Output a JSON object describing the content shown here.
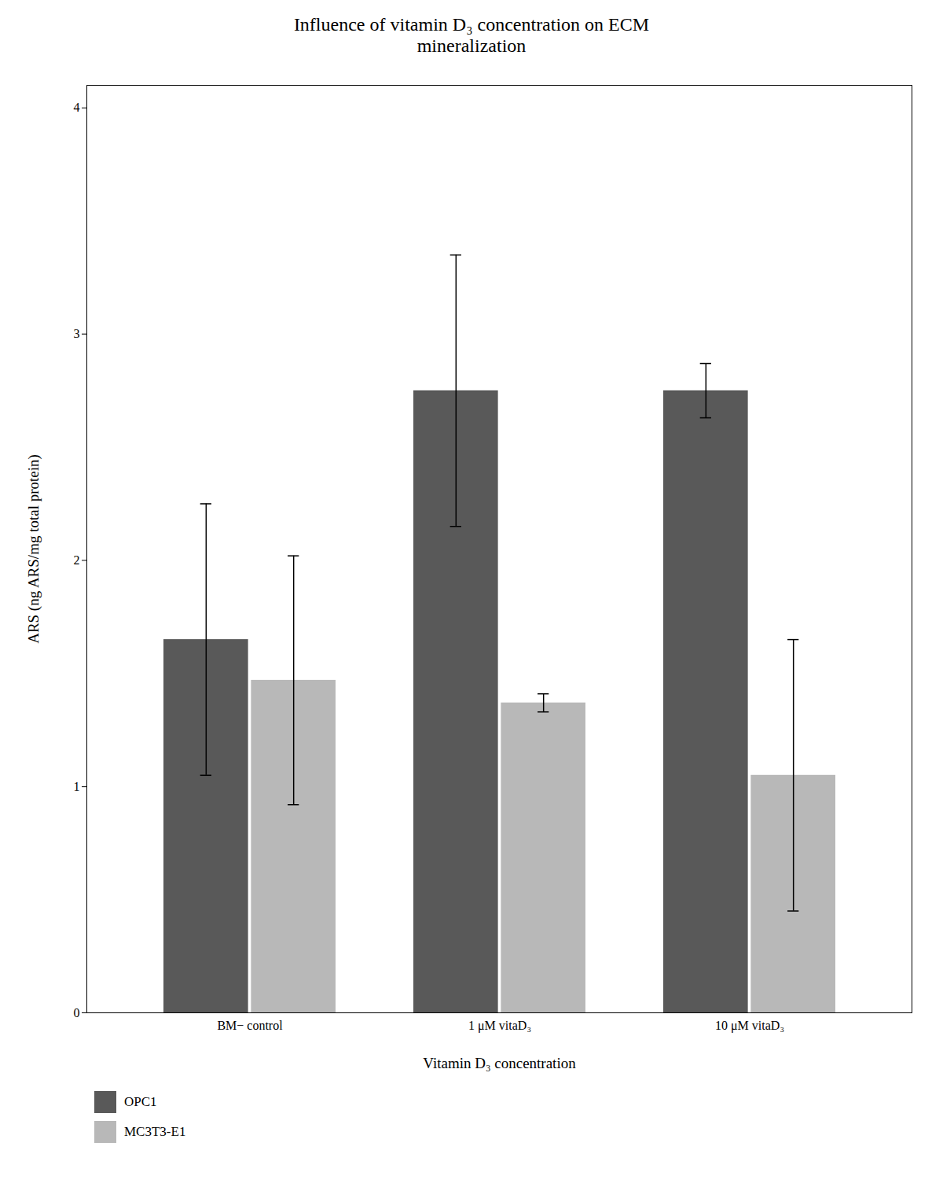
{
  "chart_data": {
    "type": "bar",
    "title": "Influence of vitamin D₃ concentration on ECM\nmineralization",
    "xlabel": "Vitamin D₃ concentration",
    "ylabel": "ARS (ng ARS/mg total protein)",
    "categories": [
      "BM− control",
      "1 μM vitaD₃",
      "10 μM vitaD₃"
    ],
    "series": [
      {
        "name": "OPC1",
        "color": "#595959",
        "values": [
          1.65,
          2.75,
          2.75
        ],
        "errors": [
          0.6,
          0.6,
          0.12
        ]
      },
      {
        "name": "MC3T3-E1",
        "color": "#b8b8b8",
        "values": [
          1.47,
          1.37,
          1.05
        ],
        "errors": [
          0.55,
          0.04,
          0.6
        ]
      }
    ],
    "ylim": [
      0,
      4.1
    ],
    "yticks": [
      0,
      1,
      2,
      3,
      4
    ],
    "grid": false,
    "legend": "lower left"
  }
}
